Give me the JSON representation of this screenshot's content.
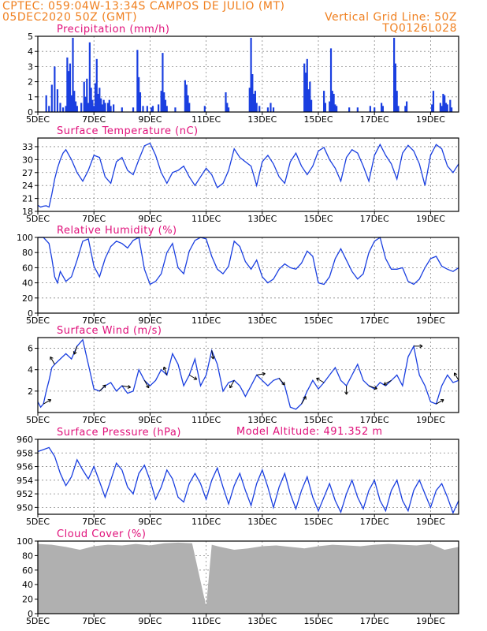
{
  "header": {
    "line1": "CPTEC:   059:04W-13:34S   CAMPOS DE JULIO (MT)",
    "line2": "05DEC2020 50Z (GMT)",
    "grid_note": "Vertical Grid Line: 50Z",
    "code": "TQ0126L028"
  },
  "colors": {
    "header": "#f08020",
    "panel_title": "#e0107a",
    "series": "#1a3fe0",
    "cloud": "#b0b0b0",
    "wind_arrow": "#000000"
  },
  "x_axis": {
    "tick_labels": [
      "5DEC",
      "7DEC",
      "9DEC",
      "11DEC",
      "13DEC",
      "15DEC",
      "17DEC",
      "19DEC"
    ],
    "tick_days": [
      0,
      2,
      4,
      6,
      8,
      10,
      12,
      14
    ],
    "range_days": [
      0,
      15
    ]
  },
  "chart_data": [
    {
      "type": "bar",
      "panel": "precipitation",
      "title": "Precipitation (mm/h)",
      "ylim": [
        0,
        5
      ],
      "yticks": [
        0,
        1,
        2,
        3,
        4,
        5
      ],
      "x_unit": "days since 05DEC",
      "bars": [
        [
          0.3,
          1.1
        ],
        [
          0.4,
          0.4
        ],
        [
          0.5,
          1.8
        ],
        [
          0.6,
          3.0
        ],
        [
          0.7,
          1.5
        ],
        [
          0.8,
          0.6
        ],
        [
          0.9,
          0.3
        ],
        [
          1.0,
          0.4
        ],
        [
          1.05,
          3.6
        ],
        [
          1.1,
          2.7
        ],
        [
          1.15,
          3.2
        ],
        [
          1.2,
          1.1
        ],
        [
          1.25,
          4.9
        ],
        [
          1.3,
          1.4
        ],
        [
          1.35,
          0.7
        ],
        [
          1.4,
          0.4
        ],
        [
          1.55,
          0.6
        ],
        [
          1.65,
          2.0
        ],
        [
          1.7,
          1.0
        ],
        [
          1.75,
          2.2
        ],
        [
          1.8,
          0.6
        ],
        [
          1.85,
          4.6
        ],
        [
          1.9,
          1.6
        ],
        [
          1.95,
          0.8
        ],
        [
          2.0,
          0.4
        ],
        [
          2.05,
          1.9
        ],
        [
          2.1,
          3.5
        ],
        [
          2.15,
          1.2
        ],
        [
          2.2,
          1.6
        ],
        [
          2.25,
          0.9
        ],
        [
          2.3,
          0.5
        ],
        [
          2.35,
          0.8
        ],
        [
          2.4,
          0.6
        ],
        [
          2.5,
          0.6
        ],
        [
          2.55,
          0.8
        ],
        [
          2.6,
          0.4
        ],
        [
          2.7,
          0.5
        ],
        [
          3.0,
          0.3
        ],
        [
          3.4,
          0.3
        ],
        [
          3.55,
          4.1
        ],
        [
          3.6,
          2.3
        ],
        [
          3.65,
          1.3
        ],
        [
          3.75,
          0.4
        ],
        [
          3.9,
          0.4
        ],
        [
          4.05,
          0.3
        ],
        [
          4.1,
          0.4
        ],
        [
          4.3,
          0.5
        ],
        [
          4.4,
          1.4
        ],
        [
          4.45,
          3.9
        ],
        [
          4.5,
          1.3
        ],
        [
          4.55,
          0.8
        ],
        [
          4.6,
          0.4
        ],
        [
          4.9,
          0.3
        ],
        [
          5.25,
          2.1
        ],
        [
          5.3,
          1.8
        ],
        [
          5.35,
          1.1
        ],
        [
          5.4,
          0.6
        ],
        [
          5.95,
          0.4
        ],
        [
          6.7,
          1.3
        ],
        [
          6.75,
          0.6
        ],
        [
          6.8,
          0.3
        ],
        [
          7.55,
          1.6
        ],
        [
          7.6,
          4.9
        ],
        [
          7.65,
          2.5
        ],
        [
          7.7,
          1.2
        ],
        [
          7.75,
          1.4
        ],
        [
          7.8,
          0.6
        ],
        [
          7.9,
          0.4
        ],
        [
          8.2,
          0.3
        ],
        [
          8.3,
          0.6
        ],
        [
          8.4,
          0.3
        ],
        [
          9.5,
          3.2
        ],
        [
          9.55,
          2.6
        ],
        [
          9.6,
          3.5
        ],
        [
          9.65,
          1.5
        ],
        [
          9.7,
          2.0
        ],
        [
          9.75,
          0.8
        ],
        [
          10.2,
          1.4
        ],
        [
          10.25,
          0.6
        ],
        [
          10.4,
          0.7
        ],
        [
          10.45,
          4.2
        ],
        [
          10.5,
          1.4
        ],
        [
          10.55,
          1.2
        ],
        [
          10.6,
          0.5
        ],
        [
          10.65,
          0.4
        ],
        [
          11.1,
          0.3
        ],
        [
          11.4,
          0.3
        ],
        [
          11.85,
          0.4
        ],
        [
          12.0,
          0.3
        ],
        [
          12.25,
          0.6
        ],
        [
          12.3,
          0.4
        ],
        [
          12.7,
          4.9
        ],
        [
          12.75,
          3.2
        ],
        [
          12.8,
          1.4
        ],
        [
          12.85,
          0.4
        ],
        [
          13.1,
          0.4
        ],
        [
          13.15,
          0.7
        ],
        [
          14.05,
          0.5
        ],
        [
          14.1,
          1.4
        ],
        [
          14.35,
          0.6
        ],
        [
          14.4,
          0.4
        ],
        [
          14.45,
          1.2
        ],
        [
          14.5,
          1.1
        ],
        [
          14.55,
          0.6
        ],
        [
          14.6,
          0.5
        ],
        [
          14.7,
          0.8
        ],
        [
          14.75,
          0.3
        ]
      ]
    },
    {
      "type": "line",
      "panel": "temperature",
      "title": "Surface Temperature (nC)",
      "ylim": [
        18,
        35
      ],
      "yticks": [
        18,
        21,
        24,
        27,
        30,
        33
      ],
      "x": [
        0,
        0.1,
        0.2,
        0.3,
        0.4,
        0.5,
        0.6,
        0.7,
        0.8,
        0.9,
        1.0,
        1.2,
        1.4,
        1.6,
        1.8,
        2.0,
        2.2,
        2.4,
        2.6,
        2.8,
        3.0,
        3.2,
        3.4,
        3.6,
        3.8,
        4.0,
        4.2,
        4.4,
        4.6,
        4.8,
        5.0,
        5.2,
        5.4,
        5.6,
        5.8,
        6.0,
        6.2,
        6.4,
        6.6,
        6.8,
        7.0,
        7.2,
        7.4,
        7.6,
        7.8,
        8.0,
        8.2,
        8.4,
        8.6,
        8.8,
        9.0,
        9.2,
        9.4,
        9.6,
        9.8,
        10.0,
        10.2,
        10.4,
        10.6,
        10.8,
        11.0,
        11.2,
        11.4,
        11.6,
        11.8,
        12.0,
        12.2,
        12.4,
        12.6,
        12.8,
        13.0,
        13.2,
        13.4,
        13.6,
        13.8,
        14.0,
        14.2,
        14.4,
        14.6,
        14.8,
        15.0
      ],
      "values": [
        19.4,
        19.0,
        19.2,
        19.3,
        19.0,
        22.0,
        25.5,
        28.0,
        30.0,
        31.5,
        32.3,
        30.0,
        27.0,
        25.0,
        27.5,
        31.0,
        30.5,
        26.0,
        24.5,
        29.5,
        30.5,
        27.5,
        26.5,
        30.0,
        33.2,
        33.8,
        31.0,
        27.0,
        24.5,
        27.0,
        27.5,
        28.5,
        26.0,
        24.0,
        26.0,
        28.0,
        26.5,
        23.5,
        24.5,
        27.5,
        32.5,
        30.5,
        29.5,
        28.5,
        24.0,
        29.5,
        31.0,
        29.0,
        26.0,
        24.5,
        29.5,
        31.5,
        28.5,
        26.5,
        28.5,
        32.0,
        32.8,
        30.0,
        28.0,
        25.0,
        30.5,
        32.3,
        31.5,
        28.5,
        25.0,
        31.0,
        33.5,
        31.0,
        29.0,
        25.5,
        31.5,
        33.3,
        32.0,
        29.0,
        24.0,
        31.0,
        33.5,
        32.5,
        28.5,
        27.0,
        29.0
      ]
    },
    {
      "type": "line",
      "panel": "humidity",
      "title": "Relative Humidity (%)",
      "ylim": [
        0,
        100
      ],
      "yticks": [
        0,
        20,
        40,
        60,
        80,
        100
      ],
      "x": [
        0,
        0.2,
        0.4,
        0.5,
        0.6,
        0.7,
        0.8,
        1.0,
        1.2,
        1.4,
        1.6,
        1.8,
        2.0,
        2.2,
        2.4,
        2.6,
        2.8,
        3.0,
        3.2,
        3.4,
        3.6,
        3.8,
        4.0,
        4.2,
        4.4,
        4.6,
        4.8,
        5.0,
        5.2,
        5.4,
        5.6,
        5.8,
        6.0,
        6.2,
        6.4,
        6.6,
        6.8,
        7.0,
        7.2,
        7.4,
        7.6,
        7.8,
        8.0,
        8.2,
        8.4,
        8.6,
        8.8,
        9.0,
        9.2,
        9.4,
        9.6,
        9.8,
        10.0,
        10.2,
        10.4,
        10.6,
        10.8,
        11.0,
        11.2,
        11.4,
        11.6,
        11.8,
        12.0,
        12.2,
        12.4,
        12.6,
        12.8,
        13.0,
        13.2,
        13.4,
        13.6,
        13.8,
        14.0,
        14.2,
        14.4,
        14.6,
        14.8,
        15.0
      ],
      "values": [
        100,
        100,
        92,
        72,
        48,
        40,
        55,
        42,
        48,
        70,
        95,
        98,
        62,
        48,
        72,
        88,
        95,
        92,
        86,
        96,
        100,
        58,
        38,
        42,
        52,
        80,
        92,
        60,
        52,
        82,
        96,
        100,
        98,
        75,
        58,
        52,
        62,
        95,
        88,
        68,
        58,
        70,
        48,
        40,
        45,
        58,
        65,
        60,
        58,
        66,
        82,
        75,
        40,
        38,
        48,
        72,
        85,
        70,
        55,
        45,
        52,
        80,
        95,
        100,
        72,
        58,
        58,
        60,
        42,
        38,
        45,
        60,
        72,
        75,
        62,
        58,
        55,
        60
      ]
    },
    {
      "type": "line",
      "panel": "wind",
      "title": "Surface Wind (m/s)",
      "ylim": [
        0,
        7
      ],
      "yticks": [
        2,
        4,
        6
      ],
      "x": [
        0,
        0.1,
        0.2,
        0.3,
        0.4,
        0.5,
        0.6,
        0.8,
        1.0,
        1.2,
        1.4,
        1.6,
        1.8,
        2.0,
        2.2,
        2.4,
        2.6,
        2.8,
        3.0,
        3.2,
        3.4,
        3.6,
        3.8,
        4.0,
        4.2,
        4.4,
        4.6,
        4.8,
        5.0,
        5.2,
        5.4,
        5.6,
        5.8,
        6.0,
        6.2,
        6.4,
        6.6,
        6.8,
        7.0,
        7.2,
        7.4,
        7.6,
        7.8,
        8.0,
        8.2,
        8.4,
        8.6,
        8.8,
        9.0,
        9.2,
        9.4,
        9.6,
        9.8,
        10.0,
        10.2,
        10.4,
        10.6,
        10.8,
        11.0,
        11.2,
        11.4,
        11.6,
        11.8,
        12.0,
        12.2,
        12.4,
        12.6,
        12.8,
        13.0,
        13.2,
        13.4,
        13.6,
        13.8,
        14.0,
        14.2,
        14.4,
        14.6,
        14.8,
        15.0
      ],
      "values": [
        1.0,
        0.5,
        0.8,
        2.0,
        3.0,
        4.2,
        4.5,
        5.0,
        5.5,
        5.0,
        6.2,
        6.8,
        4.5,
        2.2,
        2.0,
        2.5,
        2.8,
        2.0,
        2.5,
        1.8,
        2.0,
        4.0,
        3.0,
        2.5,
        3.0,
        4.0,
        3.5,
        5.5,
        4.5,
        2.5,
        3.5,
        5.0,
        2.5,
        3.5,
        5.8,
        4.5,
        2.0,
        2.8,
        3.0,
        2.5,
        1.5,
        2.5,
        3.5,
        3.0,
        2.5,
        3.0,
        3.2,
        2.5,
        0.5,
        0.3,
        0.8,
        2.0,
        3.0,
        2.2,
        2.8,
        3.5,
        4.2,
        3.0,
        2.5,
        3.5,
        4.5,
        3.0,
        2.5,
        2.2,
        2.8,
        2.5,
        3.0,
        3.5,
        2.5,
        5.2,
        6.2,
        3.5,
        2.5,
        1.0,
        0.8,
        2.5,
        3.5,
        2.8,
        3.0
      ]
    },
    {
      "type": "line",
      "panel": "pressure",
      "title": "Surface Pressure (hPa)",
      "model_altitude": "Model Altitude: 491.352  m",
      "ylim": [
        949,
        960
      ],
      "yticks": [
        950,
        952,
        954,
        956,
        958,
        960
      ],
      "x": [
        0,
        0.2,
        0.4,
        0.6,
        0.8,
        1.0,
        1.2,
        1.4,
        1.6,
        1.8,
        2.0,
        2.2,
        2.4,
        2.6,
        2.8,
        3.0,
        3.2,
        3.4,
        3.6,
        3.8,
        4.0,
        4.2,
        4.4,
        4.6,
        4.8,
        5.0,
        5.2,
        5.4,
        5.6,
        5.8,
        6.0,
        6.2,
        6.4,
        6.6,
        6.8,
        7.0,
        7.2,
        7.4,
        7.6,
        7.8,
        8.0,
        8.2,
        8.4,
        8.6,
        8.8,
        9.0,
        9.2,
        9.4,
        9.6,
        9.8,
        10.0,
        10.2,
        10.4,
        10.6,
        10.8,
        11.0,
        11.2,
        11.4,
        11.6,
        11.8,
        12.0,
        12.2,
        12.4,
        12.6,
        12.8,
        13.0,
        13.2,
        13.4,
        13.6,
        13.8,
        14.0,
        14.2,
        14.4,
        14.6,
        14.8,
        15.0
      ],
      "values": [
        958.2,
        958.5,
        958.8,
        957.5,
        955.0,
        953.2,
        954.5,
        957.0,
        955.5,
        954.2,
        956.0,
        953.8,
        951.5,
        954.0,
        956.5,
        955.5,
        953.0,
        952.0,
        955.0,
        956.2,
        954.0,
        951.2,
        953.0,
        955.5,
        954.2,
        951.5,
        950.8,
        953.5,
        955.0,
        953.5,
        951.2,
        954.0,
        955.8,
        953.0,
        950.5,
        953.2,
        955.0,
        952.5,
        950.3,
        953.5,
        955.5,
        953.0,
        950.0,
        953.0,
        955.0,
        952.0,
        949.8,
        952.5,
        954.5,
        951.5,
        949.5,
        951.5,
        953.5,
        951.0,
        949.3,
        952.0,
        954.0,
        951.5,
        949.8,
        952.5,
        954.0,
        951.0,
        949.5,
        952.5,
        954.0,
        951.0,
        949.5,
        952.5,
        954.0,
        952.0,
        950.0,
        952.5,
        953.5,
        951.5,
        949.2,
        951.0
      ]
    },
    {
      "type": "area",
      "panel": "cloud",
      "title": "Cloud Cover (%)",
      "ylim": [
        0,
        100
      ],
      "yticks": [
        0,
        20,
        40,
        60,
        80,
        100
      ],
      "x": [
        0,
        0.5,
        1.0,
        1.5,
        2.0,
        2.5,
        3.0,
        3.5,
        4.0,
        4.5,
        5.0,
        5.5,
        6.0,
        6.2,
        6.5,
        7.0,
        7.5,
        8.0,
        8.5,
        9.0,
        9.5,
        10.0,
        10.5,
        11.0,
        11.5,
        12.0,
        12.5,
        13.0,
        13.5,
        14.0,
        14.5,
        15.0
      ],
      "values": [
        96,
        95,
        92,
        88,
        93,
        95,
        94,
        96,
        94,
        97,
        98,
        97,
        10,
        95,
        92,
        88,
        90,
        93,
        94,
        92,
        90,
        93,
        95,
        94,
        93,
        95,
        96,
        95,
        94,
        96,
        88,
        92
      ]
    }
  ]
}
